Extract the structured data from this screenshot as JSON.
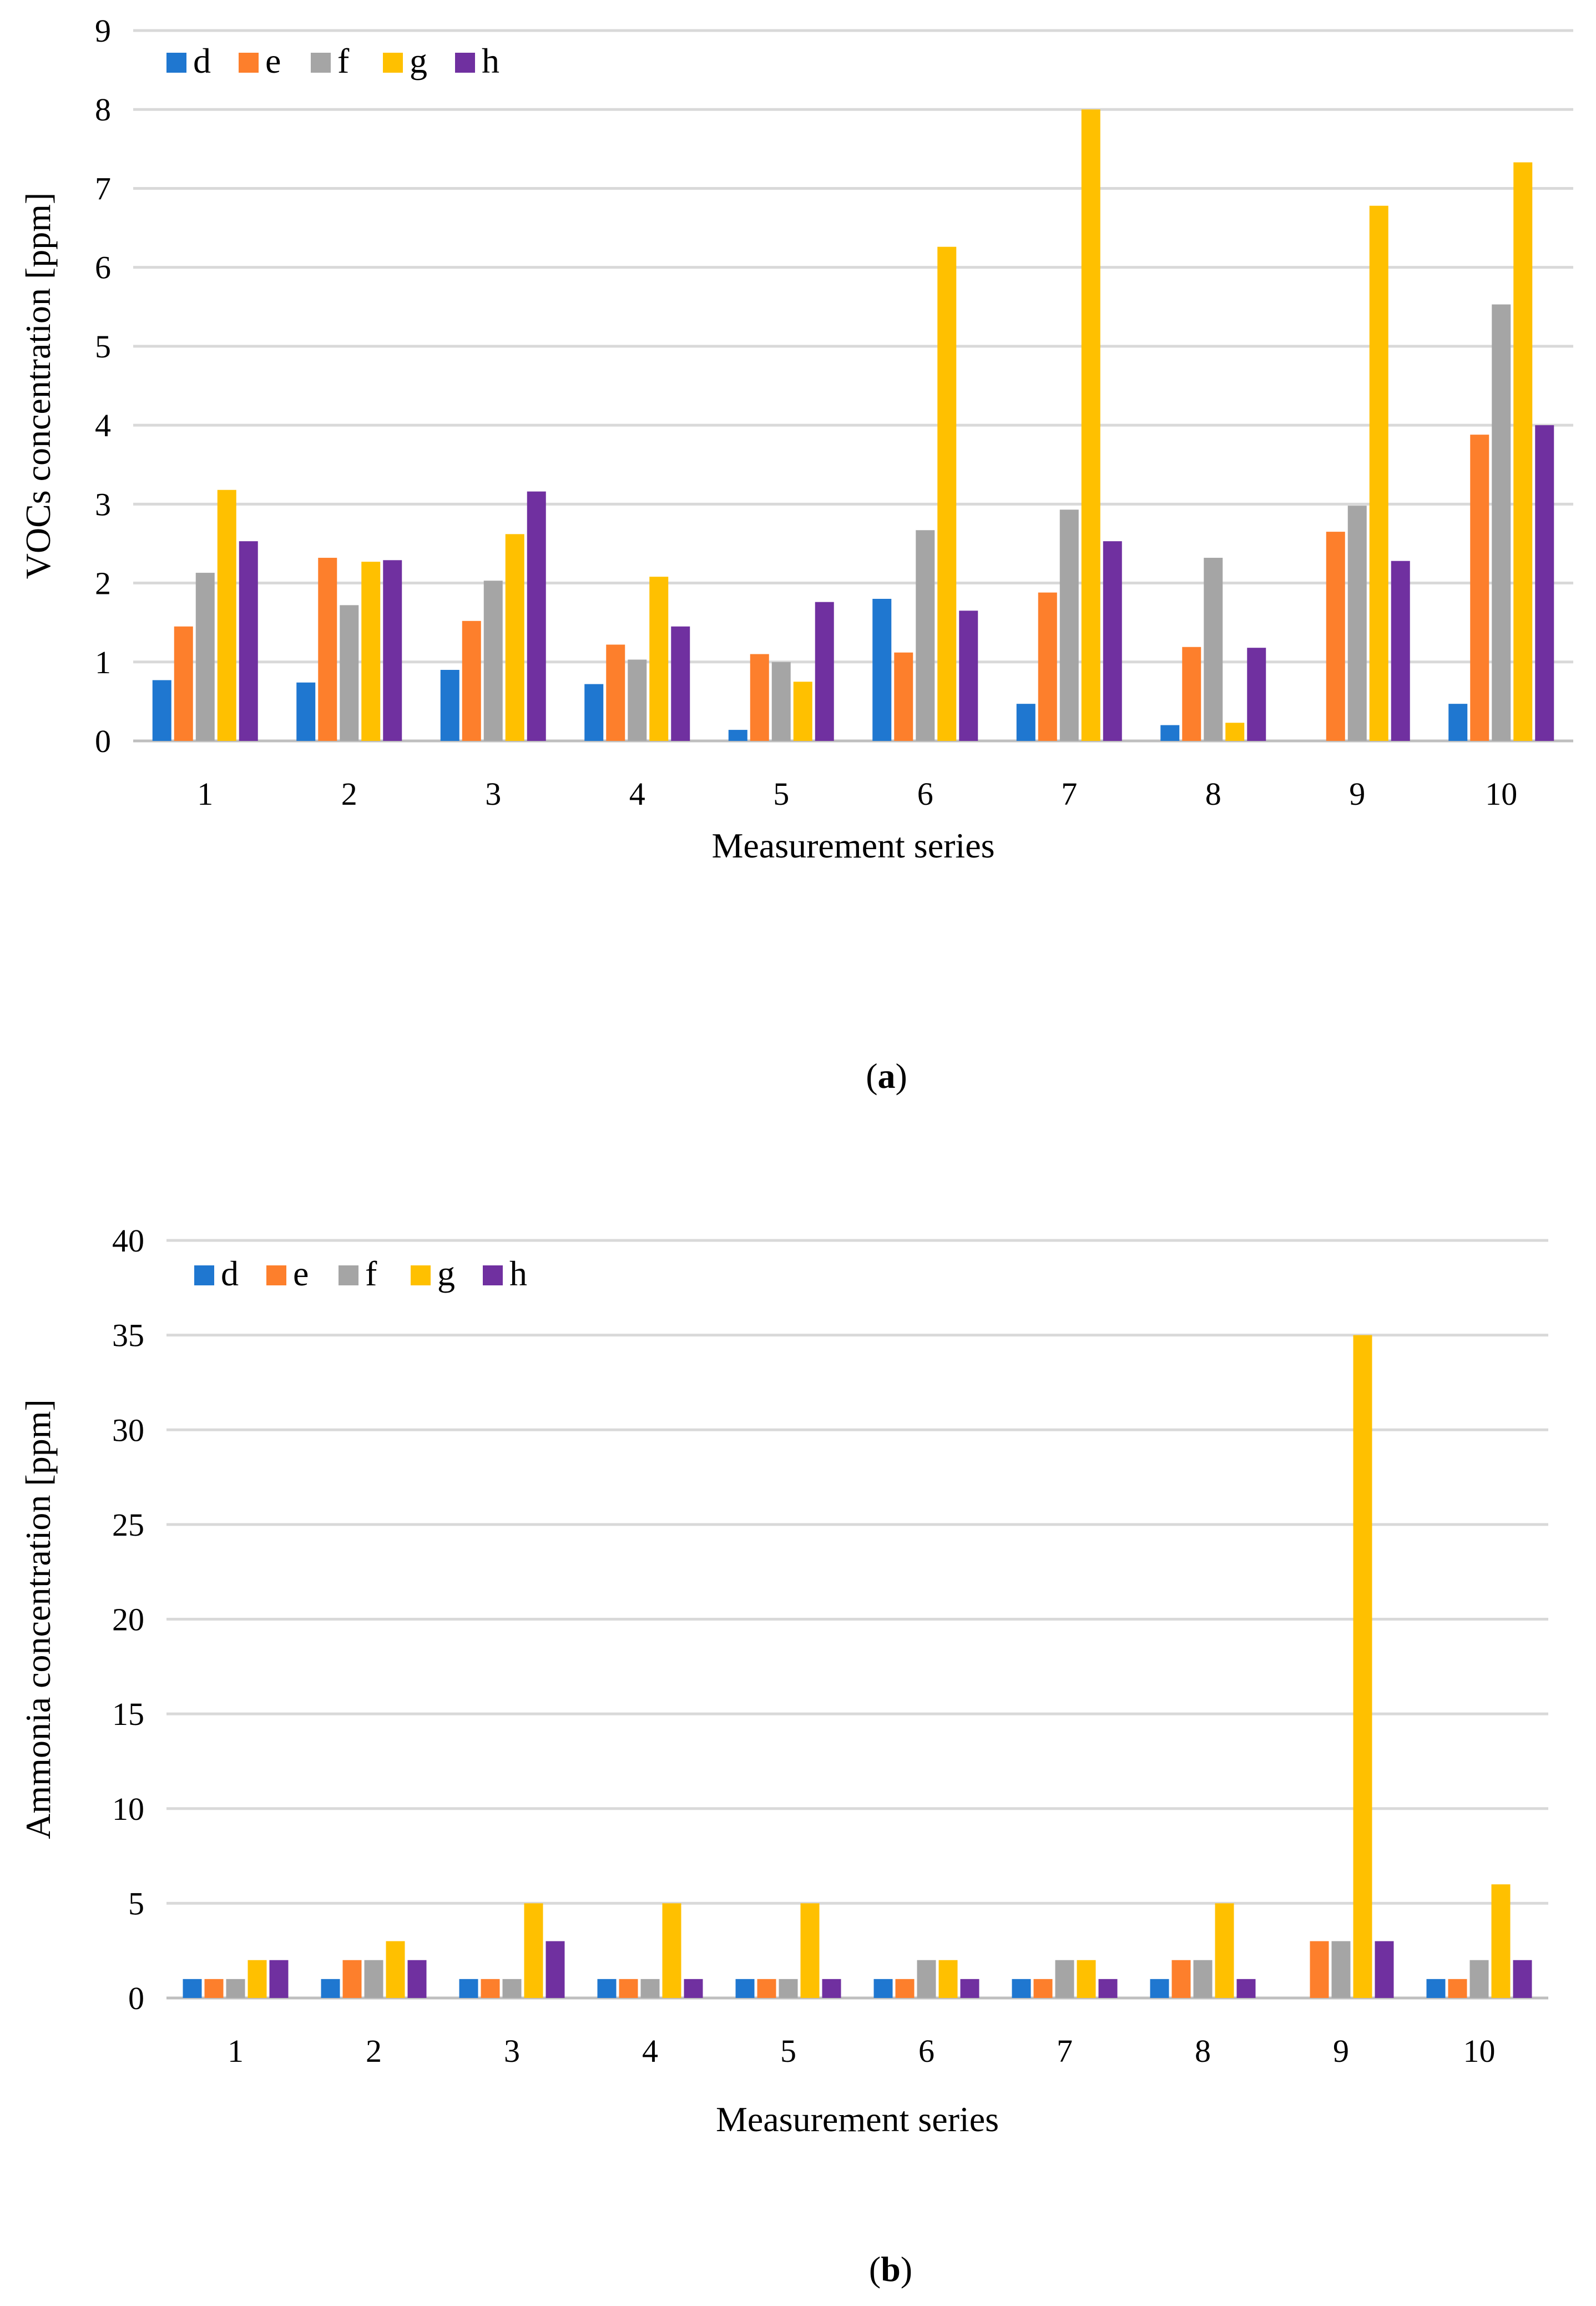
{
  "colors": {
    "d": "#1f77d0",
    "e": "#fd7f2c",
    "f": "#a5a5a5",
    "g": "#ffc000",
    "h": "#7030a0"
  },
  "chart_data": [
    {
      "type": "bar",
      "title": "",
      "xlabel": "Measurement series",
      "ylabel": "VOCs concentration [ppm]",
      "caption_open": "(",
      "caption_letter": "a",
      "caption_close": ")",
      "categories": [
        "1",
        "2",
        "3",
        "4",
        "5",
        "6",
        "7",
        "8",
        "9",
        "10"
      ],
      "ylim": [
        0,
        9
      ],
      "yticks": [
        "0",
        "1",
        "2",
        "3",
        "4",
        "5",
        "6",
        "7",
        "8",
        "9"
      ],
      "legend": "top-left",
      "series": [
        {
          "name": "d",
          "values": [
            0.77,
            0.74,
            0.9,
            0.72,
            0.14,
            1.8,
            0.47,
            0.2,
            0,
            0.47
          ]
        },
        {
          "name": "e",
          "values": [
            1.45,
            2.32,
            1.52,
            1.22,
            1.1,
            1.12,
            1.88,
            1.19,
            2.65,
            3.88
          ]
        },
        {
          "name": "f",
          "values": [
            2.13,
            1.72,
            2.03,
            1.03,
            1.0,
            2.67,
            2.93,
            2.32,
            2.98,
            5.53
          ]
        },
        {
          "name": "g",
          "values": [
            3.18,
            2.27,
            2.62,
            2.08,
            0.75,
            6.26,
            8.0,
            0.23,
            6.78,
            7.33
          ]
        },
        {
          "name": "h",
          "values": [
            2.53,
            2.29,
            3.16,
            1.45,
            1.76,
            1.65,
            2.53,
            1.18,
            2.28,
            4.0
          ]
        }
      ]
    },
    {
      "type": "bar",
      "title": "",
      "xlabel": "Measurement series",
      "ylabel": "Ammonia concentration [ppm]",
      "caption_open": "(",
      "caption_letter": "b",
      "caption_close": ")",
      "categories": [
        "1",
        "2",
        "3",
        "4",
        "5",
        "6",
        "7",
        "8",
        "9",
        "10"
      ],
      "ylim": [
        0,
        40
      ],
      "yticks": [
        "0",
        "5",
        "10",
        "15",
        "20",
        "25",
        "30",
        "35",
        "40"
      ],
      "legend": "top-left",
      "series": [
        {
          "name": "d",
          "values": [
            1,
            1,
            1,
            1,
            1,
            1,
            1,
            1,
            0,
            1
          ]
        },
        {
          "name": "e",
          "values": [
            1,
            2,
            1,
            1,
            1,
            1,
            1,
            2,
            3,
            1
          ]
        },
        {
          "name": "f",
          "values": [
            1,
            2,
            1,
            1,
            1,
            2,
            2,
            2,
            3,
            2
          ]
        },
        {
          "name": "g",
          "values": [
            2,
            3,
            5,
            5,
            5,
            2,
            2,
            5,
            35,
            6
          ]
        },
        {
          "name": "h",
          "values": [
            2,
            2,
            3,
            1,
            1,
            1,
            1,
            1,
            3,
            2
          ]
        }
      ]
    }
  ]
}
